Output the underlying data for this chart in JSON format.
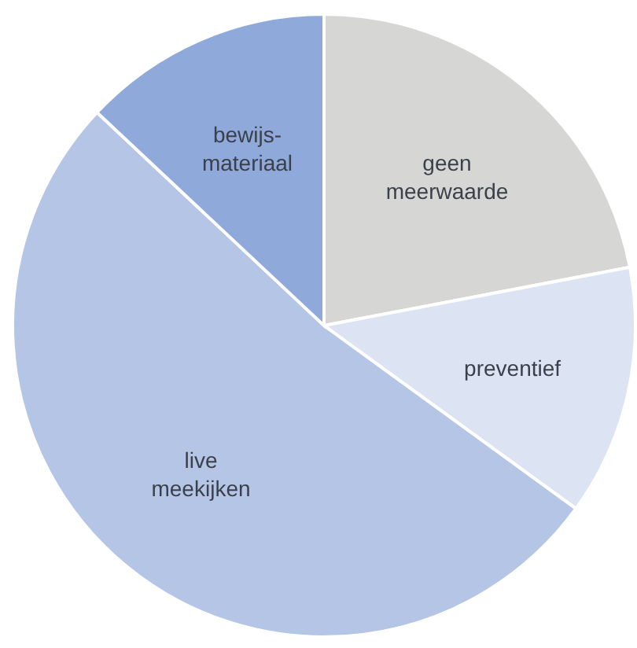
{
  "chart_data": {
    "type": "pie",
    "categories": [
      "geen meerwaarde",
      "preventief",
      "live meekijken",
      "bewijs-materiaal"
    ],
    "values": [
      22,
      13,
      52,
      13
    ],
    "colors": [
      "#d6d6d4",
      "#dce3f3",
      "#b4c5e6",
      "#8fa9da"
    ]
  }
}
